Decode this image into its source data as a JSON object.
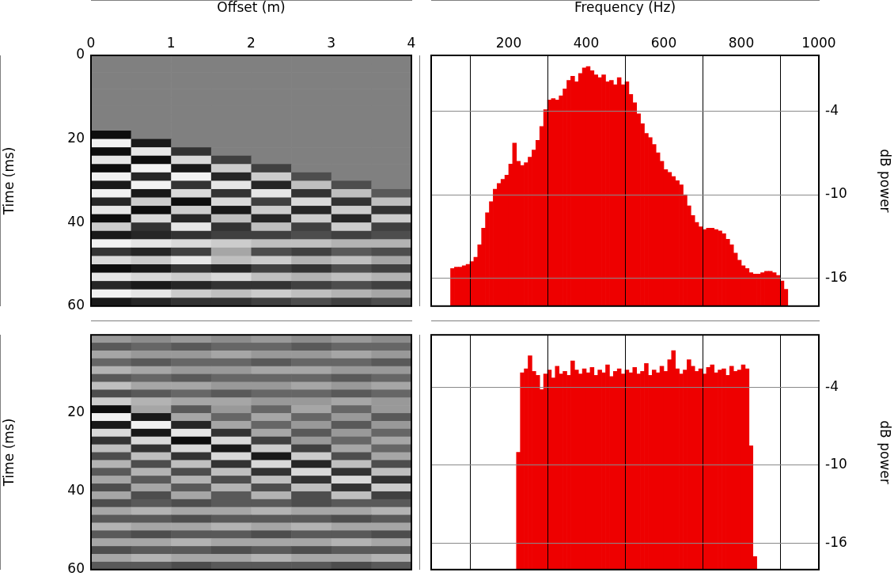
{
  "chart_data": [
    {
      "type": "heatmap",
      "xlabel": "Offset (m)",
      "ylabel": "Time (ms)",
      "xlim": [
        0,
        4
      ],
      "xticks": [
        0,
        1,
        2,
        3,
        4
      ],
      "ylim": [
        0,
        60
      ],
      "yticks": [
        0,
        20,
        40,
        60
      ],
      "xbins": [
        0,
        0.5,
        1,
        1.5,
        2,
        2.5,
        3,
        3.5,
        4
      ],
      "ybins": [
        0,
        2,
        4,
        6,
        8,
        10,
        12,
        14,
        16,
        18,
        20,
        22,
        24,
        26,
        28,
        30,
        32,
        34,
        36,
        38,
        40,
        42,
        44,
        46,
        48,
        50,
        52,
        54,
        56,
        58,
        60
      ],
      "zlim": [
        -1,
        1
      ],
      "cells": [
        [
          0,
          0,
          0,
          0,
          0,
          0,
          0,
          0
        ],
        [
          0,
          0,
          0,
          0,
          0,
          0,
          0,
          0
        ],
        [
          0,
          0,
          0,
          0,
          0,
          0,
          0,
          0
        ],
        [
          0,
          0,
          0,
          0,
          0,
          0,
          0,
          0
        ],
        [
          0,
          0,
          0,
          0,
          0,
          0,
          0,
          0
        ],
        [
          0,
          0,
          0,
          0,
          0,
          0,
          0,
          0
        ],
        [
          0,
          0,
          0,
          0,
          0,
          0,
          0,
          0
        ],
        [
          0,
          0,
          0,
          0,
          0,
          0,
          0,
          0
        ],
        [
          0,
          0,
          0,
          0,
          0,
          0,
          0,
          0
        ],
        [
          -0.9,
          0,
          0,
          0,
          0,
          0,
          0,
          0
        ],
        [
          0.9,
          -0.8,
          0,
          0,
          0,
          0,
          0,
          0
        ],
        [
          -0.9,
          0.8,
          -0.6,
          0,
          0,
          0,
          0,
          0
        ],
        [
          0.8,
          -0.9,
          0.7,
          -0.5,
          0,
          0,
          0,
          0
        ],
        [
          -0.9,
          0.9,
          -0.8,
          0.6,
          -0.5,
          0,
          0,
          0
        ],
        [
          0.9,
          -0.7,
          0.9,
          -0.7,
          0.6,
          -0.4,
          0,
          0
        ],
        [
          -0.8,
          0.9,
          -0.6,
          0.8,
          -0.7,
          0.5,
          -0.4,
          0
        ],
        [
          0.9,
          -0.8,
          0.7,
          -0.6,
          0.8,
          -0.6,
          0.5,
          -0.3
        ],
        [
          -0.7,
          0.6,
          -0.9,
          0.7,
          -0.5,
          0.7,
          -0.6,
          0.5
        ],
        [
          0.8,
          -0.9,
          0.6,
          -0.8,
          0.6,
          -0.7,
          0.6,
          -0.6
        ],
        [
          -0.9,
          0.7,
          -0.7,
          0.5,
          -0.7,
          0.6,
          -0.7,
          0.6
        ],
        [
          0.6,
          -0.6,
          0.8,
          -0.6,
          0.5,
          -0.5,
          0.6,
          -0.5
        ],
        [
          -0.8,
          -0.7,
          -0.6,
          -0.5,
          -0.5,
          -0.4,
          -0.5,
          -0.4
        ],
        [
          0.9,
          0.8,
          0.7,
          0.6,
          0.5,
          0.5,
          0.4,
          0.4
        ],
        [
          -0.6,
          -0.7,
          -0.5,
          0.3,
          -0.4,
          -0.5,
          -0.3,
          -0.4
        ],
        [
          0.7,
          0.6,
          0.8,
          0.5,
          0.6,
          0.4,
          0.5,
          0.3
        ],
        [
          -0.9,
          -0.8,
          -0.6,
          -0.7,
          -0.5,
          -0.6,
          -0.4,
          -0.5
        ],
        [
          0.8,
          0.7,
          0.6,
          0.7,
          0.5,
          0.4,
          0.5,
          0.4
        ],
        [
          -0.7,
          -0.8,
          -0.7,
          -0.6,
          -0.6,
          -0.5,
          -0.4,
          -0.5
        ],
        [
          0.9,
          0.8,
          0.6,
          0.5,
          0.6,
          0.5,
          0.4,
          0.3
        ],
        [
          -0.8,
          -0.7,
          -0.6,
          -0.6,
          -0.5,
          -0.4,
          -0.5,
          -0.4
        ]
      ]
    },
    {
      "type": "heatmap",
      "ylabel": "Time (ms)",
      "tick_labels": "y",
      "xlim": [
        0,
        4
      ],
      "ylim": [
        0,
        60
      ],
      "yticks": [
        20,
        40,
        60
      ],
      "xbins": [
        0,
        0.5,
        1,
        1.5,
        2,
        2.5,
        3,
        3.5,
        4
      ],
      "ybins": [
        0,
        2,
        4,
        6,
        8,
        10,
        12,
        14,
        16,
        18,
        20,
        22,
        24,
        26,
        28,
        30,
        32,
        34,
        36,
        38,
        40,
        42,
        44,
        46,
        48,
        50,
        52,
        54,
        56,
        58,
        60
      ],
      "zlim": [
        -1,
        1
      ],
      "cells": [
        [
          0.2,
          0.1,
          0.2,
          0.1,
          0.2,
          0.1,
          0.2,
          0.1
        ],
        [
          -0.3,
          -0.2,
          -0.3,
          -0.2,
          -0.2,
          -0.3,
          -0.2,
          -0.2
        ],
        [
          0.3,
          0.2,
          0.2,
          0.3,
          0.2,
          0.2,
          0.3,
          0.2
        ],
        [
          -0.2,
          -0.3,
          -0.2,
          -0.2,
          -0.3,
          -0.2,
          -0.2,
          -0.3
        ],
        [
          0.4,
          0.3,
          0.2,
          0.2,
          0.3,
          0.3,
          0.2,
          0.2
        ],
        [
          -0.3,
          -0.2,
          -0.3,
          -0.2,
          -0.2,
          -0.2,
          -0.3,
          -0.2
        ],
        [
          0.5,
          0.3,
          0.3,
          0.2,
          0.2,
          0.3,
          0.2,
          0.3
        ],
        [
          -0.4,
          -0.3,
          -0.2,
          -0.3,
          -0.2,
          -0.2,
          -0.3,
          -0.2
        ],
        [
          0.6,
          0.4,
          0.3,
          0.3,
          0.2,
          0.2,
          0.3,
          0.2
        ],
        [
          -0.9,
          0.3,
          -0.3,
          0.2,
          -0.2,
          0.3,
          -0.2,
          0.2
        ],
        [
          0.9,
          -0.8,
          0.3,
          -0.2,
          0.3,
          -0.2,
          0.2,
          -0.3
        ],
        [
          -0.8,
          0.9,
          -0.7,
          0.3,
          -0.2,
          0.2,
          -0.3,
          0.2
        ],
        [
          0.7,
          -0.8,
          0.8,
          -0.6,
          0.3,
          -0.3,
          0.2,
          -0.2
        ],
        [
          -0.6,
          0.7,
          -0.9,
          0.7,
          -0.5,
          0.2,
          -0.2,
          0.3
        ],
        [
          0.5,
          -0.6,
          0.7,
          -0.8,
          0.6,
          -0.5,
          0.3,
          -0.2
        ],
        [
          -0.4,
          0.5,
          -0.6,
          0.7,
          -0.8,
          0.6,
          -0.4,
          0.3
        ],
        [
          0.4,
          -0.4,
          0.5,
          -0.6,
          0.7,
          -0.7,
          0.5,
          -0.4
        ],
        [
          -0.3,
          0.4,
          -0.4,
          0.5,
          -0.6,
          0.7,
          -0.6,
          0.5
        ],
        [
          0.3,
          -0.3,
          0.4,
          -0.4,
          0.5,
          -0.6,
          0.7,
          -0.6
        ],
        [
          -0.4,
          0.3,
          -0.3,
          0.4,
          -0.4,
          0.5,
          -0.6,
          0.6
        ],
        [
          0.3,
          -0.4,
          0.3,
          -0.3,
          0.4,
          -0.4,
          0.5,
          -0.5
        ],
        [
          -0.4,
          -0.3,
          -0.4,
          -0.3,
          -0.3,
          -0.4,
          -0.3,
          -0.3
        ],
        [
          0.3,
          0.4,
          0.3,
          0.3,
          0.4,
          0.3,
          0.3,
          0.4
        ],
        [
          -0.3,
          -0.3,
          -0.4,
          -0.3,
          -0.3,
          -0.3,
          -0.4,
          -0.3
        ],
        [
          0.4,
          0.3,
          0.3,
          0.4,
          0.3,
          0.4,
          0.3,
          0.3
        ],
        [
          -0.3,
          -0.4,
          -0.3,
          -0.3,
          -0.4,
          -0.3,
          -0.3,
          -0.4
        ],
        [
          0.3,
          0.3,
          0.4,
          0.3,
          0.3,
          0.3,
          0.4,
          0.3
        ],
        [
          -0.4,
          -0.3,
          -0.3,
          -0.4,
          -0.3,
          -0.4,
          -0.3,
          -0.3
        ],
        [
          0.3,
          0.4,
          0.3,
          0.3,
          0.4,
          0.3,
          0.3,
          0.4
        ],
        [
          -0.3,
          -0.3,
          -0.4,
          -0.3,
          -0.3,
          -0.3,
          -0.4,
          -0.3
        ]
      ]
    },
    {
      "type": "histogram",
      "xlabel": "Frequency (Hz)",
      "ylabel": "dB power",
      "color": "#ee0000",
      "grid": true,
      "xlim": [
        0,
        1000
      ],
      "xticks": [
        200,
        400,
        600,
        800,
        1000
      ],
      "ylim": [
        -18,
        0
      ],
      "yticks": [
        -4,
        -10,
        -16
      ],
      "bins": [
        50,
        60,
        70,
        80,
        90,
        100,
        110,
        120,
        130,
        140,
        150,
        160,
        170,
        180,
        190,
        200,
        210,
        220,
        230,
        240,
        250,
        260,
        270,
        280,
        290,
        300,
        310,
        320,
        330,
        340,
        350,
        360,
        370,
        380,
        390,
        400,
        410,
        420,
        430,
        440,
        450,
        460,
        470,
        480,
        490,
        500,
        510,
        520,
        530,
        540,
        550,
        560,
        570,
        580,
        590,
        600,
        610,
        620,
        630,
        640,
        650,
        660,
        670,
        680,
        690,
        700,
        710,
        720,
        730,
        740,
        750,
        760,
        770,
        780,
        790,
        800,
        810,
        820,
        830,
        840,
        850,
        860,
        870,
        880,
        890,
        900,
        910,
        920
      ],
      "values": [
        -15.3,
        -15.2,
        -15.2,
        -15.1,
        -15.0,
        -14.8,
        -14.5,
        -13.6,
        -12.4,
        -11.3,
        -10.5,
        -9.6,
        -9.2,
        -8.9,
        -8.6,
        -7.8,
        -6.3,
        -7.6,
        -7.9,
        -7.7,
        -7.3,
        -6.8,
        -6.1,
        -5.1,
        -3.9,
        -3.2,
        -3.1,
        -3.2,
        -2.9,
        -2.4,
        -1.8,
        -1.5,
        -1.9,
        -1.3,
        -0.9,
        -0.8,
        -1.1,
        -1.4,
        -1.6,
        -1.4,
        -1.9,
        -1.8,
        -2.1,
        -1.6,
        -2.1,
        -1.9,
        -2.8,
        -3.4,
        -4.2,
        -4.9,
        -5.6,
        -5.9,
        -6.4,
        -7.0,
        -7.6,
        -8.2,
        -8.4,
        -8.7,
        -9.0,
        -9.3,
        -10.0,
        -10.8,
        -11.5,
        -12.0,
        -12.3,
        -12.5,
        -12.4,
        -12.4,
        -12.5,
        -12.6,
        -12.8,
        -13.2,
        -13.6,
        -14.2,
        -14.7,
        -15.1,
        -15.3,
        -15.6,
        -15.7,
        -15.7,
        -15.6,
        -15.5,
        -15.5,
        -15.6,
        -15.8,
        -16.2,
        -16.8
      ]
    },
    {
      "type": "histogram",
      "ylabel": "dB power",
      "color": "#ee0000",
      "grid": true,
      "tick_labels": "y",
      "xlim": [
        0,
        1000
      ],
      "xticks": [
        200,
        400,
        600,
        800,
        1000
      ],
      "ylim": [
        -18,
        0
      ],
      "yticks": [
        -4,
        -10,
        -16
      ],
      "bins": [
        220,
        230,
        240,
        250,
        260,
        270,
        280,
        290,
        300,
        310,
        320,
        330,
        340,
        350,
        360,
        370,
        380,
        390,
        400,
        410,
        420,
        430,
        440,
        450,
        460,
        470,
        480,
        490,
        500,
        510,
        520,
        530,
        540,
        550,
        560,
        570,
        580,
        590,
        600,
        610,
        620,
        630,
        640,
        650,
        660,
        670,
        680,
        690,
        700,
        710,
        720,
        730,
        740,
        750,
        760,
        770,
        780,
        790,
        800,
        810,
        820,
        830,
        840
      ],
      "values": [
        -9.0,
        -2.9,
        -2.6,
        -1.6,
        -2.8,
        -3.1,
        -4.2,
        -3.0,
        -2.7,
        -3.3,
        -2.4,
        -3.0,
        -2.8,
        -3.1,
        -2.0,
        -2.7,
        -3.0,
        -2.6,
        -2.9,
        -2.5,
        -3.1,
        -2.7,
        -2.9,
        -2.3,
        -3.2,
        -2.8,
        -2.6,
        -3.0,
        -2.7,
        -2.9,
        -2.5,
        -3.0,
        -2.8,
        -2.2,
        -3.1,
        -2.7,
        -2.9,
        -2.4,
        -2.8,
        -1.9,
        -1.2,
        -2.6,
        -3.0,
        -2.7,
        -1.9,
        -2.4,
        -2.8,
        -2.6,
        -3.0,
        -2.5,
        -2.3,
        -2.9,
        -2.7,
        -2.6,
        -3.1,
        -2.4,
        -2.8,
        -2.7,
        -2.3,
        -2.6,
        -8.5,
        -17.0
      ]
    }
  ]
}
